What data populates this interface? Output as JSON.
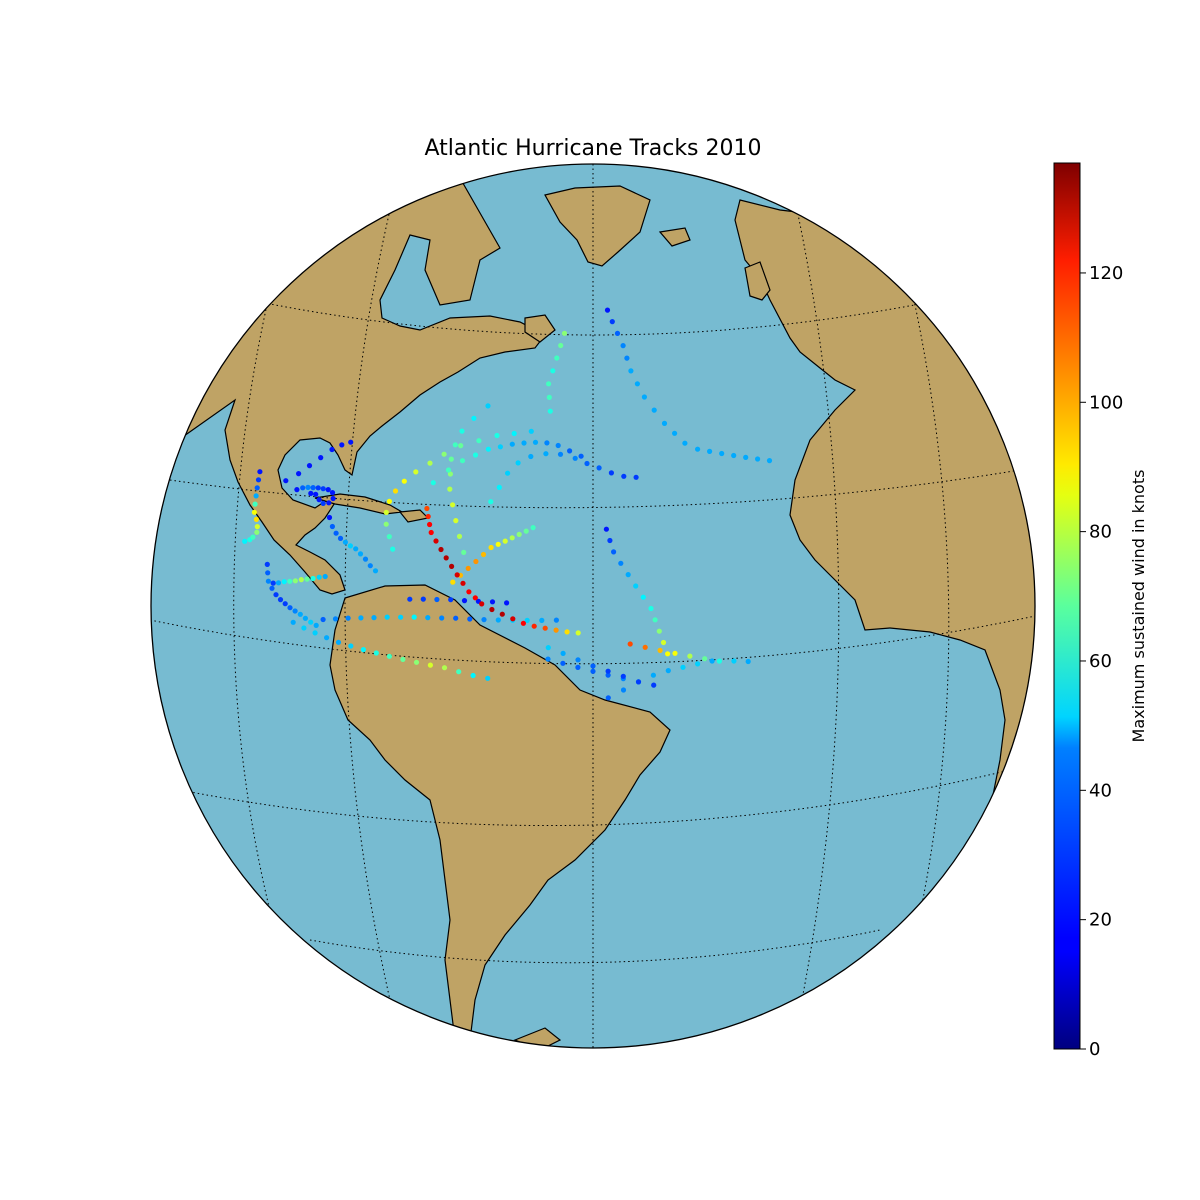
{
  "chart_data": {
    "type": "scatter",
    "title": "Atlantic Hurricane Tracks 2010",
    "projection": "orthographic",
    "map_colors": {
      "ocean": "#77bbd1",
      "land": "#bfa365",
      "coastline": "#000000",
      "gridline": "#000000"
    },
    "colormap": "jet",
    "colorbar": {
      "label": "Maximum sustained wind in knots",
      "vmin": 0,
      "vmax": 137,
      "ticks": [
        0,
        20,
        40,
        60,
        80,
        100,
        120
      ],
      "tick_labels": [
        "0",
        "20",
        "40",
        "60",
        "80",
        "100",
        "120"
      ]
    },
    "points_lonlat_wind": [
      [
        -97,
        20,
        50
      ],
      [
        -96,
        20.5,
        55
      ],
      [
        -95.5,
        21,
        60
      ],
      [
        -95,
        21.8,
        70
      ],
      [
        -95.3,
        22.5,
        80
      ],
      [
        -96,
        23.3,
        90
      ],
      [
        -97,
        24,
        85
      ],
      [
        -97.5,
        25,
        60
      ],
      [
        -98,
        26,
        40
      ],
      [
        -98.5,
        27,
        30
      ],
      [
        -99,
        28,
        25
      ],
      [
        -99.5,
        29,
        20
      ],
      [
        -93,
        29.5,
        20
      ],
      [
        -91,
        31,
        20
      ],
      [
        -89.5,
        32.5,
        20
      ],
      [
        -88,
        34,
        20
      ],
      [
        -86.5,
        35.5,
        20
      ],
      [
        -85,
        36.5,
        20
      ],
      [
        -83.5,
        37.2,
        20
      ],
      [
        -90,
        29,
        20
      ],
      [
        -89,
        29.5,
        30
      ],
      [
        -88,
        29.8,
        35
      ],
      [
        -87,
        30,
        30
      ],
      [
        -86,
        30.2,
        25
      ],
      [
        -85,
        30.3,
        25
      ],
      [
        -84,
        30.4,
        20
      ],
      [
        -83,
        30.2,
        20
      ],
      [
        -82.5,
        29.5,
        20
      ],
      [
        -83,
        28.8,
        20
      ],
      [
        -84,
        28.5,
        25
      ],
      [
        -85,
        28.8,
        20
      ],
      [
        -86,
        29.3,
        20
      ],
      [
        -87,
        29.2,
        20
      ],
      [
        -82,
        27,
        20
      ],
      [
        -81,
        26,
        30
      ],
      [
        -80,
        25.3,
        30
      ],
      [
        -79,
        24.8,
        30
      ],
      [
        -78,
        24.5,
        40
      ],
      [
        -77,
        24.2,
        45
      ],
      [
        -76,
        24,
        40
      ],
      [
        -75,
        23.5,
        40
      ],
      [
        -74,
        23,
        35
      ],
      [
        -73,
        22.3,
        35
      ],
      [
        -72,
        21.8,
        40
      ],
      [
        -89,
        16.5,
        25
      ],
      [
        -88,
        16.8,
        40
      ],
      [
        -87,
        17.2,
        50
      ],
      [
        -86,
        17.5,
        60
      ],
      [
        -85,
        17.8,
        70
      ],
      [
        -84,
        18.2,
        75
      ],
      [
        -83,
        18.5,
        65
      ],
      [
        -82,
        18.8,
        55
      ],
      [
        -81,
        19.2,
        45
      ],
      [
        -80,
        19.5,
        40
      ],
      [
        -91,
        18.5,
        25
      ],
      [
        -90.5,
        17.5,
        30
      ],
      [
        -90,
        16.5,
        35
      ],
      [
        -89,
        15.8,
        30
      ],
      [
        -88,
        15.2,
        25
      ],
      [
        -87,
        14.8,
        25
      ],
      [
        -86,
        14.5,
        25
      ],
      [
        -85,
        14.2,
        30
      ],
      [
        -84,
        14,
        35
      ],
      [
        -83,
        13.8,
        40
      ],
      [
        -82,
        13.5,
        40
      ],
      [
        -81,
        13.2,
        45
      ],
      [
        -80,
        13,
        40
      ],
      [
        -84,
        12.5,
        40
      ],
      [
        -82,
        12.2,
        45
      ],
      [
        -80,
        12,
        45
      ],
      [
        -78,
        11.8,
        40
      ],
      [
        -76,
        11.6,
        40
      ],
      [
        -74,
        11.5,
        45
      ],
      [
        -72,
        11.4,
        50
      ],
      [
        -70,
        11.3,
        55
      ],
      [
        -68,
        11.2,
        60
      ],
      [
        -66,
        11.1,
        65
      ],
      [
        -64,
        11,
        70
      ],
      [
        -62,
        10.9,
        80
      ],
      [
        -60,
        10.8,
        75
      ],
      [
        -58,
        10.5,
        60
      ],
      [
        -56,
        10.2,
        50
      ],
      [
        -54,
        10,
        45
      ],
      [
        -79,
        14,
        30
      ],
      [
        -77,
        14.5,
        35
      ],
      [
        -75,
        15,
        35
      ],
      [
        -73,
        15.4,
        40
      ],
      [
        -71,
        15.8,
        40
      ],
      [
        -69,
        16.2,
        45
      ],
      [
        -67,
        16.5,
        45
      ],
      [
        -65,
        16.8,
        50
      ],
      [
        -63,
        17,
        40
      ],
      [
        -61,
        17.2,
        35
      ],
      [
        -59,
        17.4,
        30
      ],
      [
        -57,
        17.5,
        30
      ],
      [
        -55,
        17.6,
        35
      ],
      [
        -53,
        17.7,
        40
      ],
      [
        -51,
        17.8,
        45
      ],
      [
        -49,
        17.9,
        45
      ],
      [
        -47,
        18,
        40
      ],
      [
        -45,
        18.1,
        35
      ],
      [
        -66,
        19,
        25
      ],
      [
        -64,
        19.3,
        25
      ],
      [
        -62,
        19.5,
        30
      ],
      [
        -60,
        19.7,
        25
      ],
      [
        -58,
        19.8,
        20
      ],
      [
        -56,
        19.9,
        20
      ],
      [
        -54,
        20,
        20
      ],
      [
        -52,
        20,
        20
      ],
      [
        -58,
        24,
        55
      ],
      [
        -59,
        26,
        65
      ],
      [
        -60,
        28,
        75
      ],
      [
        -61,
        30,
        80
      ],
      [
        -62,
        32,
        80
      ],
      [
        -63,
        34,
        75
      ],
      [
        -63.5,
        36,
        70
      ],
      [
        -64,
        38,
        65
      ],
      [
        -64,
        40,
        60
      ],
      [
        -63.5,
        42,
        55
      ],
      [
        -62,
        44,
        50
      ],
      [
        -60,
        46,
        45
      ],
      [
        -60,
        22,
        90
      ],
      [
        -59,
        23,
        95
      ],
      [
        -58,
        24,
        100
      ],
      [
        -57,
        25,
        100
      ],
      [
        -56,
        26,
        95
      ],
      [
        -55,
        27,
        90
      ],
      [
        -54,
        27.5,
        85
      ],
      [
        -53,
        28,
        80
      ],
      [
        -52,
        28.5,
        75
      ],
      [
        -51,
        29,
        70
      ],
      [
        -50,
        29.5,
        65
      ],
      [
        -49,
        30,
        60
      ],
      [
        -66,
        31,
        110
      ],
      [
        -65.5,
        30,
        115
      ],
      [
        -65,
        29,
        120
      ],
      [
        -64.5,
        28,
        120
      ],
      [
        -63.5,
        27,
        125
      ],
      [
        -62.5,
        26,
        130
      ],
      [
        -61.5,
        25,
        130
      ],
      [
        -60.5,
        24,
        130
      ],
      [
        -59.5,
        23,
        125
      ],
      [
        -58.5,
        22,
        125
      ],
      [
        -57.5,
        21,
        120
      ],
      [
        -56.5,
        20.3,
        120
      ],
      [
        -55.5,
        19.6,
        125
      ],
      [
        -54,
        19,
        130
      ],
      [
        -52.5,
        18.5,
        130
      ],
      [
        -51,
        18,
        125
      ],
      [
        -49.5,
        17.5,
        120
      ],
      [
        -48,
        17.2,
        115
      ],
      [
        -46.5,
        17,
        110
      ],
      [
        -45,
        16.8,
        100
      ],
      [
        -43.5,
        16.6,
        90
      ],
      [
        -42,
        16.5,
        80
      ],
      [
        -70,
        25,
        55
      ],
      [
        -71,
        26.5,
        60
      ],
      [
        -72,
        28,
        70
      ],
      [
        -72.5,
        29.5,
        80
      ],
      [
        -72.5,
        31,
        85
      ],
      [
        -72,
        32.5,
        90
      ],
      [
        -71,
        34,
        85
      ],
      [
        -69.5,
        35.5,
        80
      ],
      [
        -67.5,
        37,
        75
      ],
      [
        -65.5,
        38.5,
        70
      ],
      [
        -63,
        40,
        65
      ],
      [
        -60,
        41,
        60
      ],
      [
        -57,
        42,
        55
      ],
      [
        -54,
        42.5,
        50
      ],
      [
        -51,
        43,
        45
      ],
      [
        -66,
        34.5,
        55
      ],
      [
        -64,
        36.5,
        60
      ],
      [
        -62,
        38,
        60
      ],
      [
        -60,
        39,
        55
      ],
      [
        -58,
        40,
        50
      ],
      [
        -56,
        40.5,
        45
      ],
      [
        -54,
        41,
        40
      ],
      [
        -52,
        41.3,
        40
      ],
      [
        -50,
        41.5,
        40
      ],
      [
        -48,
        41.5,
        35
      ],
      [
        -46,
        41.2,
        35
      ],
      [
        -44,
        40.5,
        30
      ],
      [
        -42,
        39.8,
        30
      ],
      [
        -56,
        33,
        55
      ],
      [
        -55,
        35,
        50
      ],
      [
        -54,
        37,
        45
      ],
      [
        -52.5,
        38.5,
        45
      ],
      [
        -50.5,
        39.5,
        40
      ],
      [
        -48,
        40,
        40
      ],
      [
        -45.5,
        40,
        35
      ],
      [
        -43,
        39.5,
        35
      ],
      [
        -41,
        38.8,
        30
      ],
      [
        -39,
        38.2,
        30
      ],
      [
        -37,
        37.5,
        25
      ],
      [
        -35,
        37,
        25
      ],
      [
        -33,
        36.8,
        25
      ],
      [
        -48,
        46,
        55
      ],
      [
        -48.5,
        48,
        60
      ],
      [
        -49,
        50,
        60
      ],
      [
        -48.5,
        52,
        55
      ],
      [
        -48,
        54,
        60
      ],
      [
        -47.5,
        56,
        65
      ],
      [
        -47,
        58,
        70
      ],
      [
        -36,
        62,
        20
      ],
      [
        -35,
        60,
        25
      ],
      [
        -34,
        58,
        30
      ],
      [
        -33,
        56,
        35
      ],
      [
        -32.5,
        54,
        35
      ],
      [
        -32,
        52,
        40
      ],
      [
        -31,
        50,
        40
      ],
      [
        -30,
        48,
        40
      ],
      [
        -28.5,
        46,
        40
      ],
      [
        -27,
        44,
        40
      ],
      [
        -25.5,
        42.5,
        40
      ],
      [
        -24,
        41,
        40
      ],
      [
        -22,
        40,
        40
      ],
      [
        -20,
        39.5,
        40
      ],
      [
        -18,
        39,
        40
      ],
      [
        -16,
        38.5,
        40
      ],
      [
        -14,
        38,
        40
      ],
      [
        -12,
        37.5,
        40
      ],
      [
        -10,
        37,
        40
      ],
      [
        -38,
        30,
        20
      ],
      [
        -37.5,
        28.5,
        25
      ],
      [
        -37,
        27,
        30
      ],
      [
        -36,
        25.5,
        35
      ],
      [
        -35,
        24,
        40
      ],
      [
        -34,
        22.5,
        45
      ],
      [
        -33,
        21,
        50
      ],
      [
        -32,
        19.5,
        55
      ],
      [
        -31.5,
        18,
        60
      ],
      [
        -31,
        16.5,
        70
      ],
      [
        -30.5,
        15,
        80
      ],
      [
        -30,
        13.5,
        85
      ],
      [
        -35,
        15,
        110
      ],
      [
        -33,
        14.5,
        105
      ],
      [
        -31,
        14,
        95
      ],
      [
        -29,
        13.5,
        85
      ],
      [
        -27,
        13,
        75
      ],
      [
        -25,
        12.5,
        65
      ],
      [
        -23,
        12,
        55
      ],
      [
        -21,
        11.8,
        45
      ],
      [
        -19,
        11.5,
        40
      ],
      [
        -38,
        8,
        30
      ],
      [
        -36,
        9,
        35
      ],
      [
        -34,
        10,
        40
      ],
      [
        -32,
        10.8,
        40
      ],
      [
        -30,
        11.3,
        40
      ],
      [
        -28,
        11.6,
        45
      ],
      [
        -26,
        11.9,
        45
      ],
      [
        -24,
        12.1,
        40
      ],
      [
        -46,
        13,
        35
      ],
      [
        -44,
        12.5,
        30
      ],
      [
        -42,
        12,
        30
      ],
      [
        -40,
        11.5,
        30
      ],
      [
        -38,
        11,
        30
      ],
      [
        -36,
        10.5,
        35
      ],
      [
        -34,
        10,
        40
      ],
      [
        -46,
        14.5,
        45
      ],
      [
        -44,
        13.8,
        40
      ],
      [
        -42,
        13,
        35
      ],
      [
        -40,
        12.2,
        30
      ],
      [
        -38,
        11.5,
        25
      ],
      [
        -36,
        10.8,
        25
      ],
      [
        -34,
        10,
        25
      ],
      [
        -32,
        9.5,
        25
      ]
    ]
  }
}
